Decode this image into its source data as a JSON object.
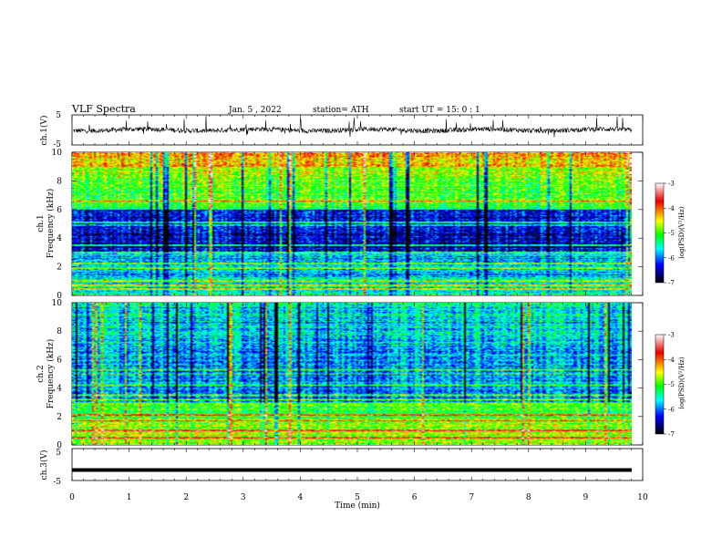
{
  "header": {
    "title": "VLF  Spectra",
    "date": "Jan. 5  , 2022",
    "station": "station= ATH",
    "start": "start  UT  =    15: 0   : 1"
  },
  "chart_data": [
    {
      "type": "line",
      "panel": "ch1-waveform",
      "ylabel": "ch.1(V)",
      "ylim": [
        -5,
        5
      ],
      "y_ticks": [
        "5",
        "-5"
      ],
      "x_range_min": [
        0,
        9.8
      ],
      "series": [
        {
          "values": "noisy waveform centered near 0 V with spikes"
        }
      ]
    },
    {
      "type": "heatmap",
      "panel": "ch1-spectrogram",
      "ylabel": "ch.1\nFrequency (kHz)",
      "ylabel_line1": "ch.1",
      "ylabel_line2": "Frequency (kHz)",
      "ylim": [
        0,
        10
      ],
      "y_ticks": [
        "0",
        "2",
        "4",
        "6",
        "8",
        "10"
      ],
      "x_range_min": [
        0,
        9.8
      ],
      "colorbar": {
        "label": "log(PSD)(V²/Hz)",
        "range": [
          -7,
          -3
        ],
        "ticks": [
          "-3",
          "-4",
          "-5",
          "-6",
          "-7"
        ],
        "colors": [
          "#ffffff",
          "#e60000",
          "#ffff00",
          "#00ff00",
          "#00ffff",
          "#0000ff",
          "#000000"
        ]
      },
      "features": {
        "high_freq_band_khz": [
          6,
          10
        ],
        "high_freq_level": -4.5,
        "low_freq_level": -6.5,
        "horizontal_lines_khz": [
          0.4,
          0.7,
          1.0,
          1.9,
          2.2,
          3.0,
          3.5,
          4.9,
          5.1,
          6.6
        ]
      }
    },
    {
      "type": "heatmap",
      "panel": "ch2-spectrogram",
      "ylabel": "ch.2\nFrequency (kHz)",
      "ylabel_line1": "ch.2",
      "ylabel_line2": "Frequency (kHz)",
      "ylim": [
        0,
        10
      ],
      "y_ticks": [
        "0",
        "2",
        "4",
        "6",
        "8",
        "10"
      ],
      "x_range_min": [
        0,
        9.8
      ],
      "colorbar": {
        "label": "log(PSD)(V²/Hz)",
        "range": [
          -7,
          -3
        ],
        "ticks": [
          "-3",
          "-4",
          "-5",
          "-6",
          "-7"
        ],
        "colors": [
          "#ffffff",
          "#e60000",
          "#ffff00",
          "#00ff00",
          "#00ffff",
          "#0000ff",
          "#000000"
        ]
      },
      "features": {
        "high_freq_level": -5.5,
        "low_freq_level": -5.0,
        "horizontal_lines_khz": [
          0.5,
          1.0,
          1.7,
          2.1,
          3.2,
          3.5,
          4.2,
          5.0,
          5.3
        ]
      }
    },
    {
      "type": "line",
      "panel": "ch3-waveform",
      "ylabel": "ch.3(V)",
      "ylim": [
        -5,
        5
      ],
      "y_ticks": [
        "5",
        "-5"
      ],
      "xlabel": "Time  (min)",
      "xlim": [
        0,
        10
      ],
      "x_ticks": [
        "0",
        "1",
        "2",
        "3",
        "4",
        "5",
        "6",
        "7",
        "8",
        "9",
        "10"
      ],
      "series": [
        {
          "values": "flat line at about -1.7 V"
        }
      ],
      "level": -1.7
    }
  ]
}
